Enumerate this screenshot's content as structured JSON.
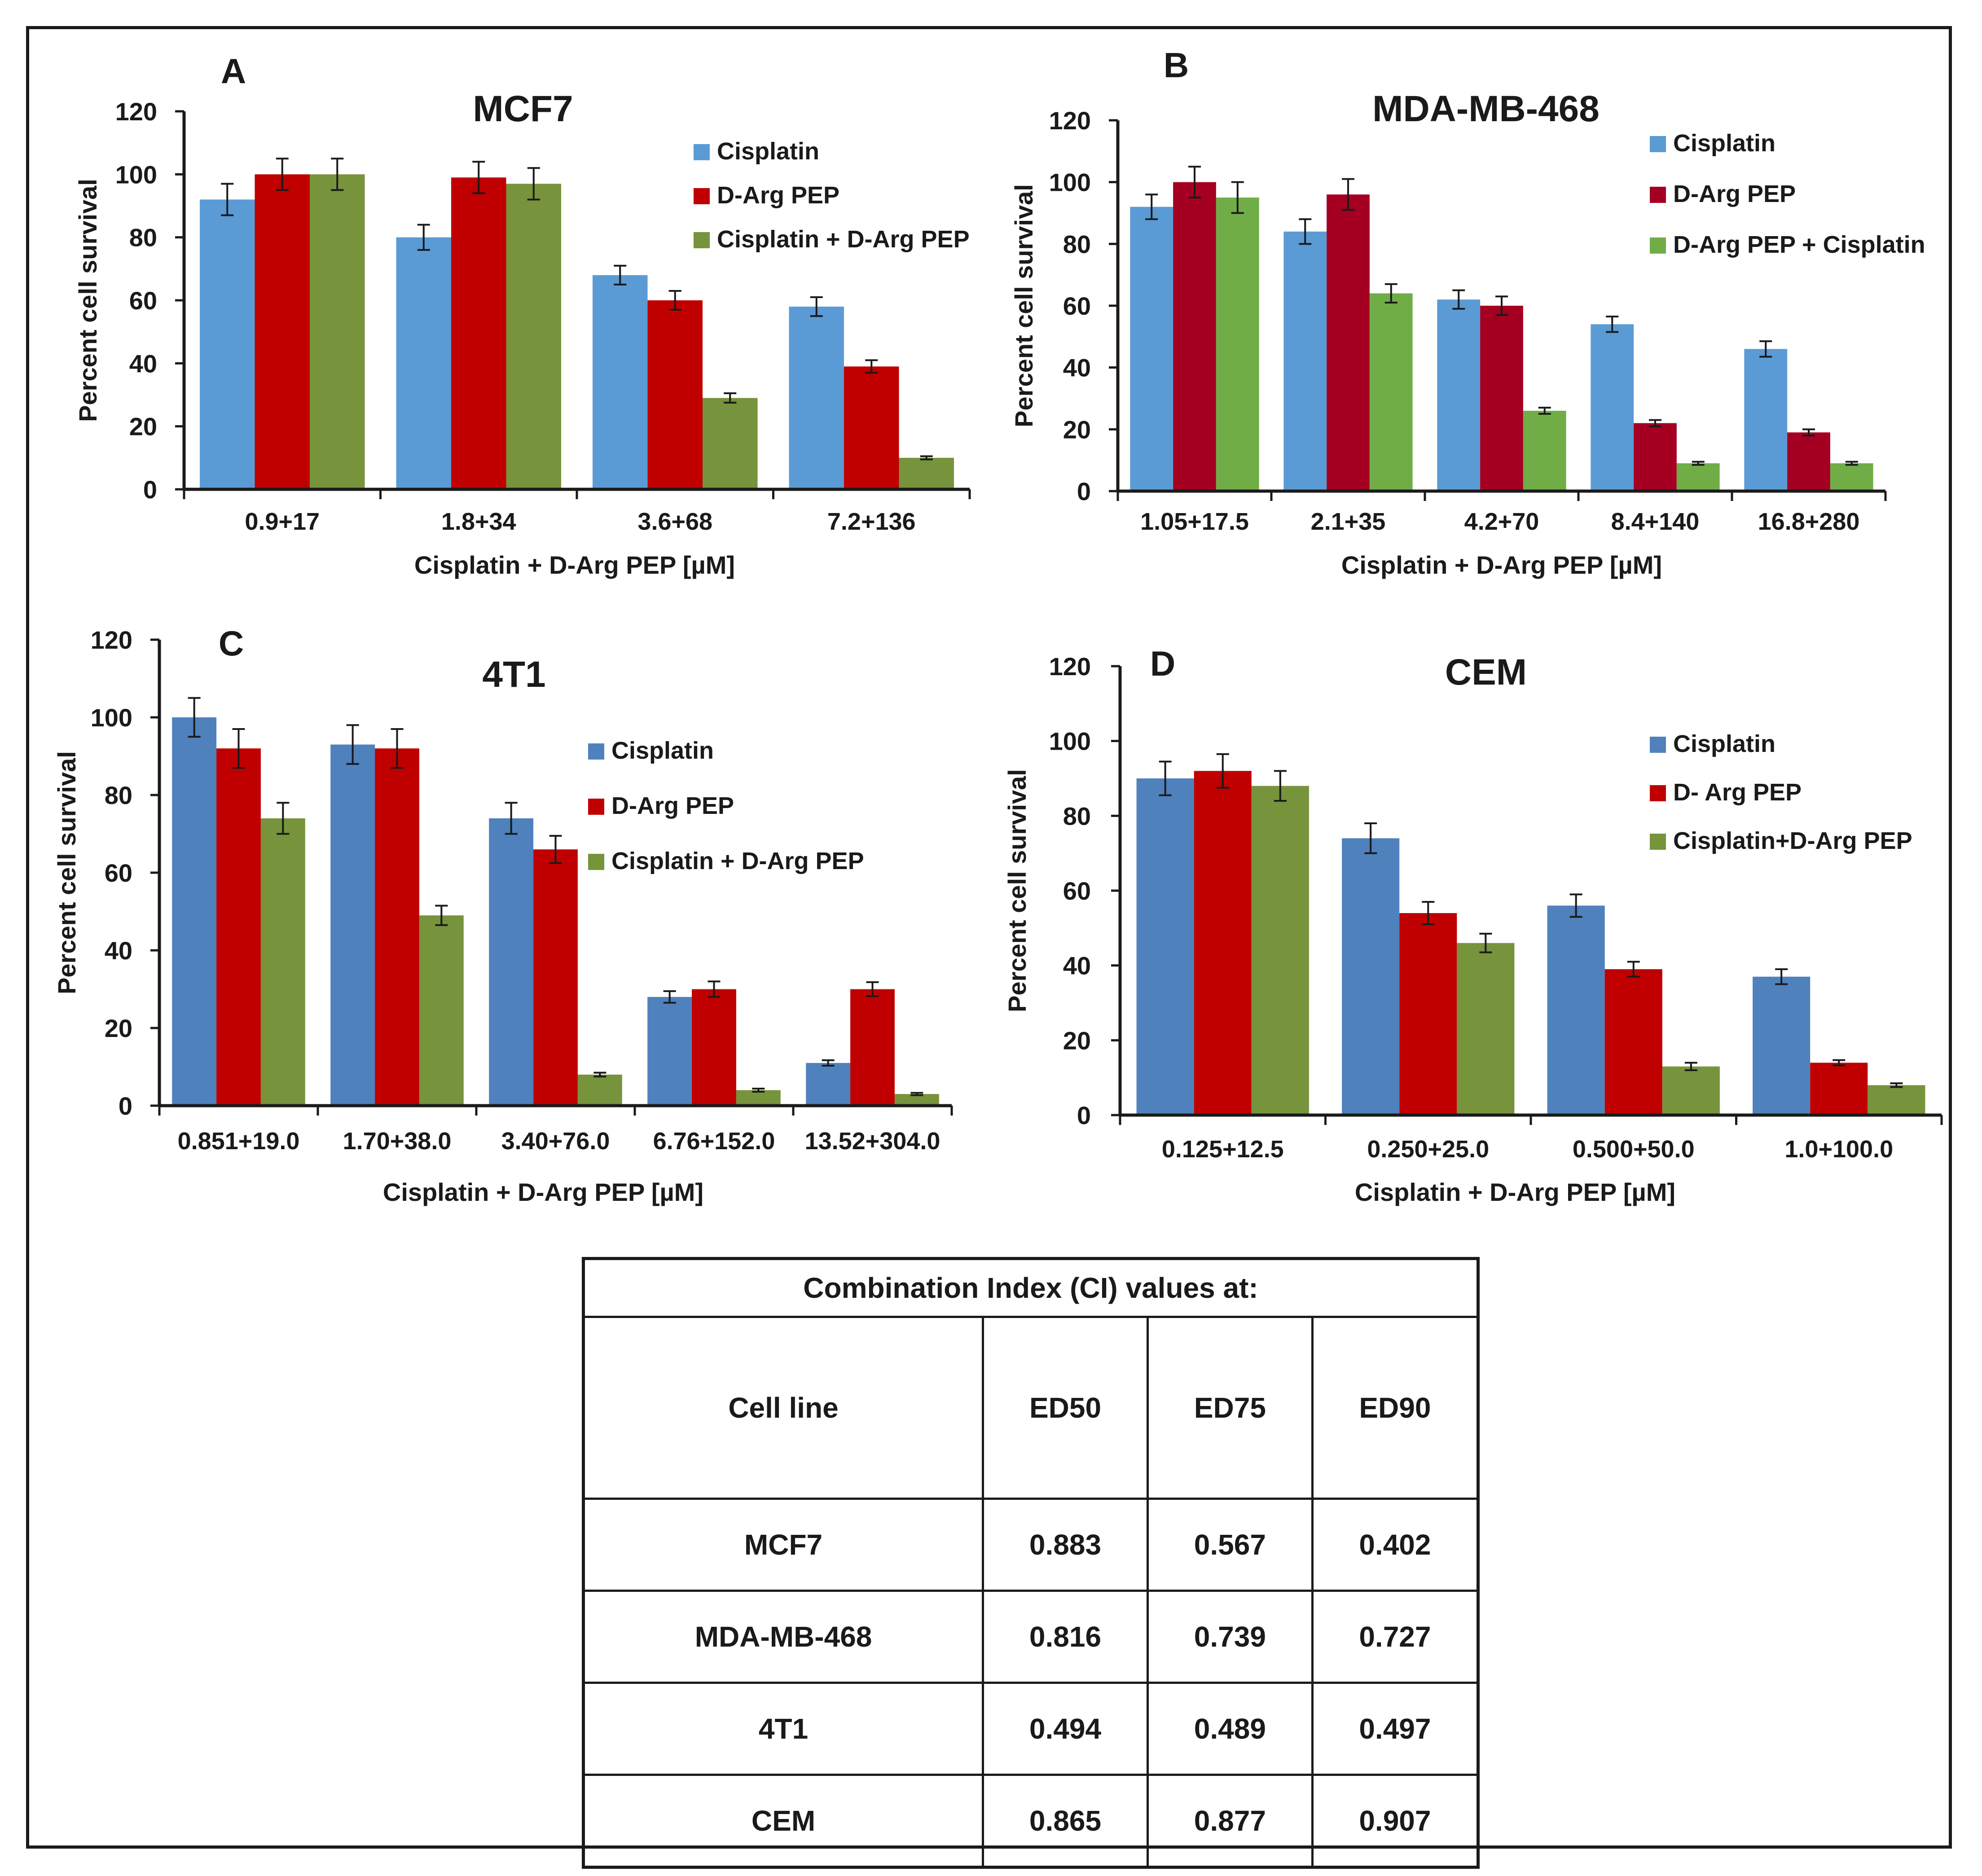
{
  "chart_data": [
    {
      "panel": "A",
      "type": "bar",
      "title": "MCF7",
      "xlabel": "Cisplatin + D-Arg PEP [µM]",
      "ylabel": "Percent cell survival",
      "ylim": [
        0,
        120
      ],
      "yticks": [
        0,
        20,
        40,
        60,
        80,
        100,
        120
      ],
      "categories": [
        "0.9+17",
        "1.8+34",
        "3.6+68",
        "7.2+136"
      ],
      "legend_position": "top-right",
      "series": [
        {
          "name": "Cisplatin",
          "color": "#5b9bd5",
          "values": [
            92,
            80,
            68,
            58
          ],
          "errors": [
            5,
            4,
            3,
            3
          ]
        },
        {
          "name": "D-Arg PEP",
          "color": "#c00000",
          "values": [
            100,
            99,
            60,
            39
          ],
          "errors": [
            5,
            5,
            3,
            2
          ]
        },
        {
          "name": "Cisplatin + D-Arg PEP",
          "color": "#77933c",
          "values": [
            100,
            97,
            29,
            10
          ],
          "errors": [
            5,
            5,
            1.5,
            0.5
          ]
        }
      ]
    },
    {
      "panel": "B",
      "type": "bar",
      "title": "MDA-MB-468",
      "xlabel": "Cisplatin + D-Arg PEP [µM]",
      "ylabel": "Percent cell survival",
      "ylim": [
        0,
        120
      ],
      "yticks": [
        0,
        20,
        40,
        60,
        80,
        100,
        120
      ],
      "categories": [
        "1.05+17.5",
        "2.1+35",
        "4.2+70",
        "8.4+140",
        "16.8+280"
      ],
      "legend_position": "top-right",
      "series": [
        {
          "name": "Cisplatin",
          "color": "#5b9bd5",
          "values": [
            92,
            84,
            62,
            54,
            46
          ],
          "errors": [
            4,
            4,
            3,
            2.5,
            2.5
          ]
        },
        {
          "name": "D-Arg PEP",
          "color": "#a50021",
          "values": [
            100,
            96,
            60,
            22,
            19
          ],
          "errors": [
            5,
            5,
            3,
            1,
            1
          ]
        },
        {
          "name": "D-Arg PEP + Cisplatin",
          "color": "#70ad47",
          "values": [
            95,
            64,
            26,
            9,
            9
          ],
          "errors": [
            5,
            3,
            1,
            0.5,
            0.5
          ]
        }
      ]
    },
    {
      "panel": "C",
      "type": "bar",
      "title": "4T1",
      "xlabel": "Cisplatin + D-Arg PEP [µM]",
      "ylabel": "Percent cell survival",
      "ylim": [
        0,
        120
      ],
      "yticks": [
        0,
        20,
        40,
        60,
        80,
        100,
        120
      ],
      "categories": [
        "0.851+19.0",
        "1.70+38.0",
        "3.40+76.0",
        "6.76+152.0",
        "13.52+304.0"
      ],
      "legend_position": "top-right",
      "series": [
        {
          "name": "Cisplatin",
          "color": "#4f81bd",
          "values": [
            100,
            93,
            74,
            28,
            11
          ],
          "errors": [
            5,
            5,
            4,
            1.5,
            0.7
          ]
        },
        {
          "name": "D-Arg PEP",
          "color": "#c00000",
          "values": [
            92,
            92,
            66,
            30,
            30
          ],
          "errors": [
            5,
            5,
            3.5,
            2,
            1.8
          ]
        },
        {
          "name": "Cisplatin + D-Arg PEP",
          "color": "#77933c",
          "values": [
            74,
            49,
            8,
            4,
            3
          ],
          "errors": [
            4,
            2.5,
            0.5,
            0.4,
            0.3
          ]
        }
      ]
    },
    {
      "panel": "D",
      "type": "bar",
      "title": "CEM",
      "xlabel": "Cisplatin + D-Arg PEP [µM]",
      "ylabel": "Percent cell survival",
      "ylim": [
        0,
        120
      ],
      "yticks": [
        0,
        20,
        40,
        60,
        80,
        100,
        120
      ],
      "categories": [
        "0.125+12.5",
        "0.250+25.0",
        "0.500+50.0",
        "1.0+100.0"
      ],
      "legend_position": "top-right",
      "series": [
        {
          "name": "Cisplatin",
          "color": "#4f81bd",
          "values": [
            90,
            74,
            56,
            37
          ],
          "errors": [
            4.5,
            4,
            3,
            2
          ]
        },
        {
          "name": "D- Arg PEP",
          "color": "#c00000",
          "values": [
            92,
            54,
            39,
            14
          ],
          "errors": [
            4.5,
            3,
            2,
            0.7
          ]
        },
        {
          "name": "Cisplatin+D-Arg PEP",
          "color": "#77933c",
          "values": [
            88,
            46,
            13,
            8
          ],
          "errors": [
            4,
            2.5,
            1,
            0.5
          ]
        }
      ]
    }
  ],
  "ci_table": {
    "title": "Combination Index (CI) values at:",
    "headers": [
      "Cell line",
      "ED50",
      "ED75",
      "ED90"
    ],
    "rows": [
      [
        "MCF7",
        "0.883",
        "0.567",
        "0.402"
      ],
      [
        "MDA-MB-468",
        "0.816",
        "0.739",
        "0.727"
      ],
      [
        "4T1",
        "0.494",
        "0.489",
        "0.497"
      ],
      [
        "CEM",
        "0.865",
        "0.877",
        "0.907"
      ]
    ]
  }
}
